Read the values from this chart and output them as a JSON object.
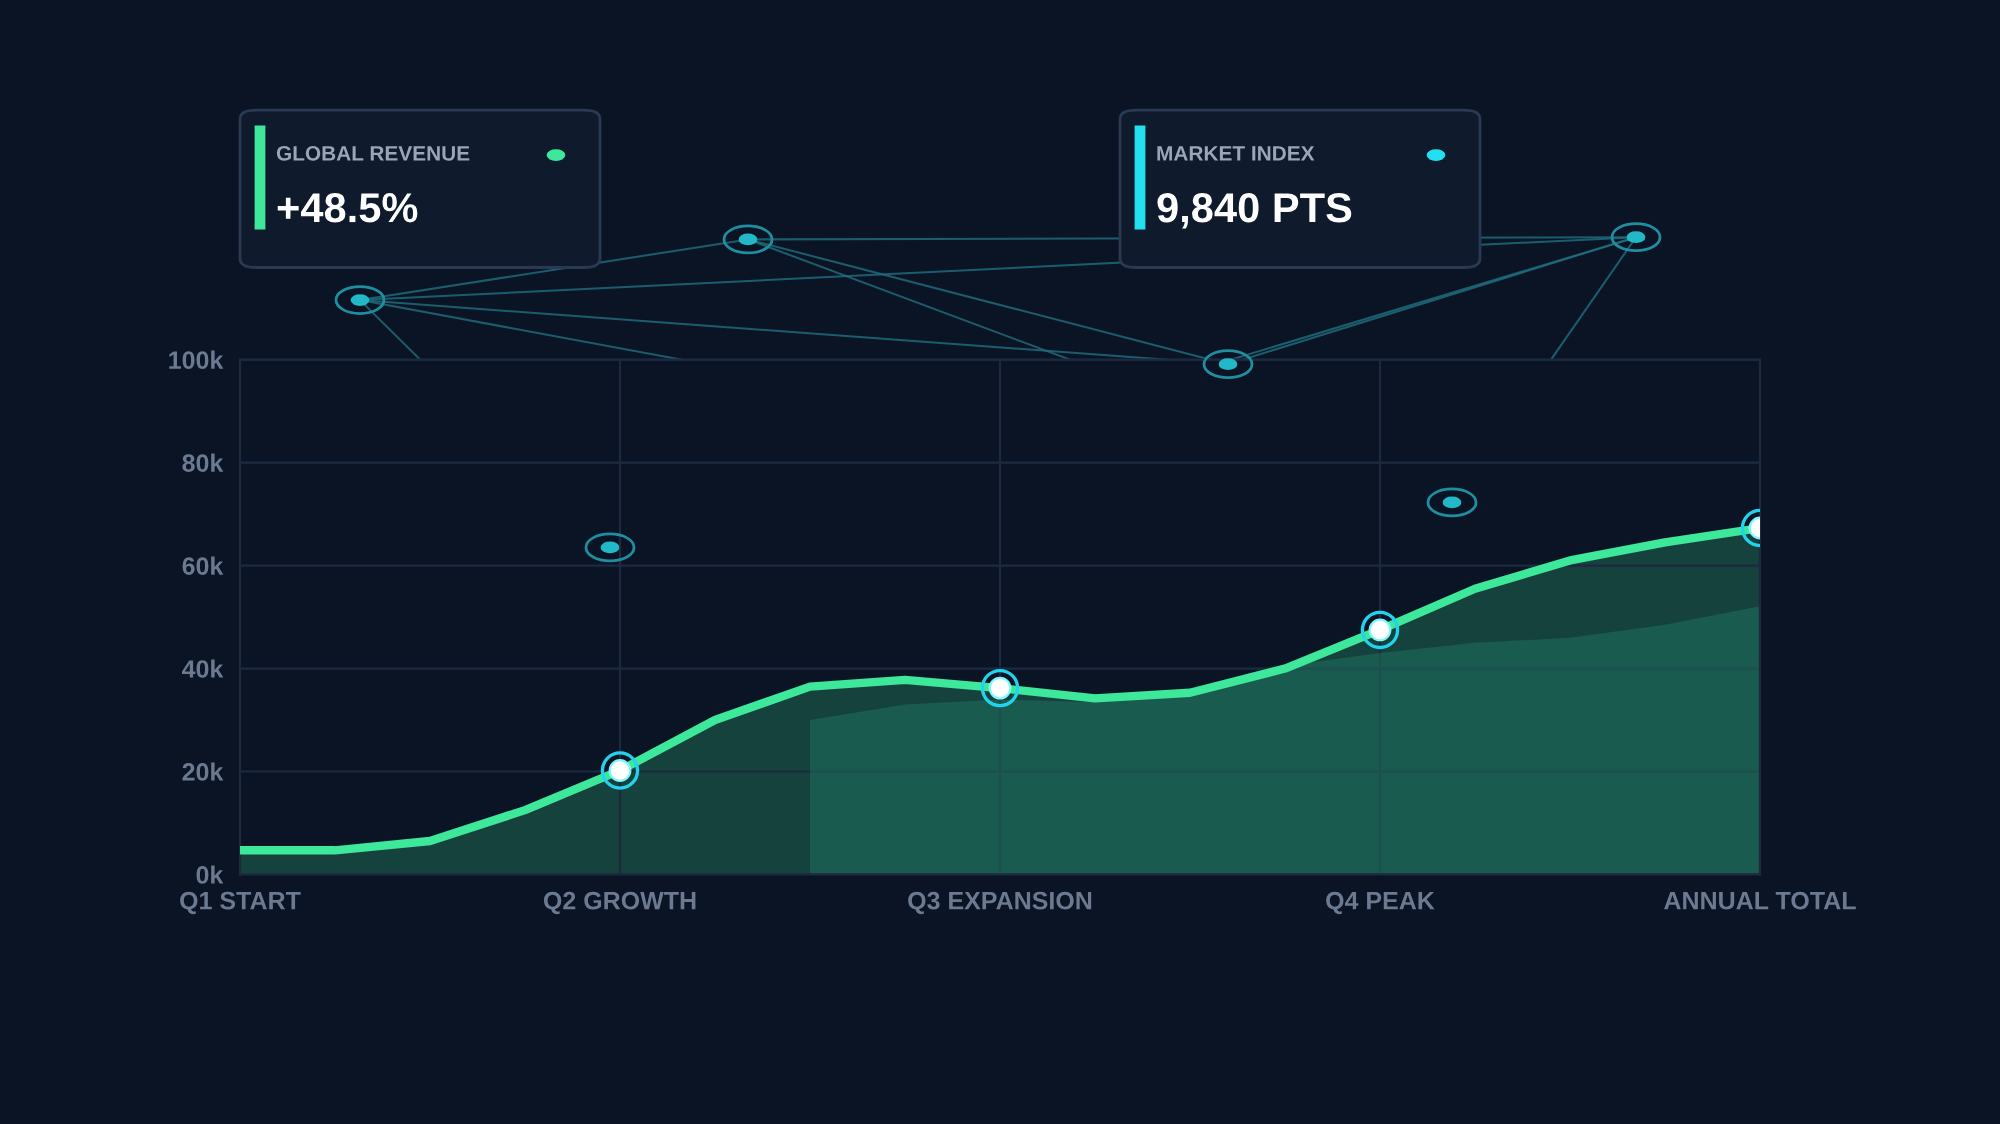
{
  "chart_data": {
    "type": "area",
    "categories": [
      "Q1 START",
      null,
      null,
      null,
      "Q2 GROWTH",
      null,
      null,
      null,
      "Q3 EXPANSION",
      null,
      null,
      null,
      "Q4 PEAK",
      null,
      null,
      null,
      "ANNUAL TOTAL"
    ],
    "series": [
      {
        "color": "#3ee89a",
        "values": [
          4.7,
          4.7,
          6.5,
          12.5,
          20.2,
          30,
          36.5,
          37.8,
          36.2,
          34.2,
          35.3,
          40,
          47.5,
          55.5,
          61,
          64.5,
          67.3
        ]
      },
      {
        "type": "area",
        "color": "#1f7a63",
        "values": [
          null,
          null,
          null,
          null,
          null,
          null,
          30,
          33,
          34,
          33.5,
          34.5,
          40.5,
          43,
          45,
          46,
          48.5,
          52.1
        ]
      },
      {
        "type": "scatter",
        "color": "#ffffff",
        "marker": "circle",
        "values": [
          null,
          null,
          null,
          null,
          20.2,
          null,
          null,
          null,
          36.2,
          null,
          null,
          null,
          47.5,
          null,
          null,
          null,
          67.3
        ]
      }
    ],
    "ylim": [
      0,
      100
    ],
    "yticks": [
      {
        "value": 0,
        "label": "0k"
      },
      {
        "value": 20,
        "label": "20k"
      },
      {
        "value": 40,
        "label": "40k"
      },
      {
        "value": 60,
        "label": "60k"
      },
      {
        "value": 80,
        "label": "80k"
      },
      {
        "value": 100,
        "label": "100k"
      }
    ],
    "grid": true,
    "annotations": [
      "GLOBAL REVENUE",
      "+48.5%",
      "MARKET INDEX",
      "9,840 PTS"
    ]
  }
}
